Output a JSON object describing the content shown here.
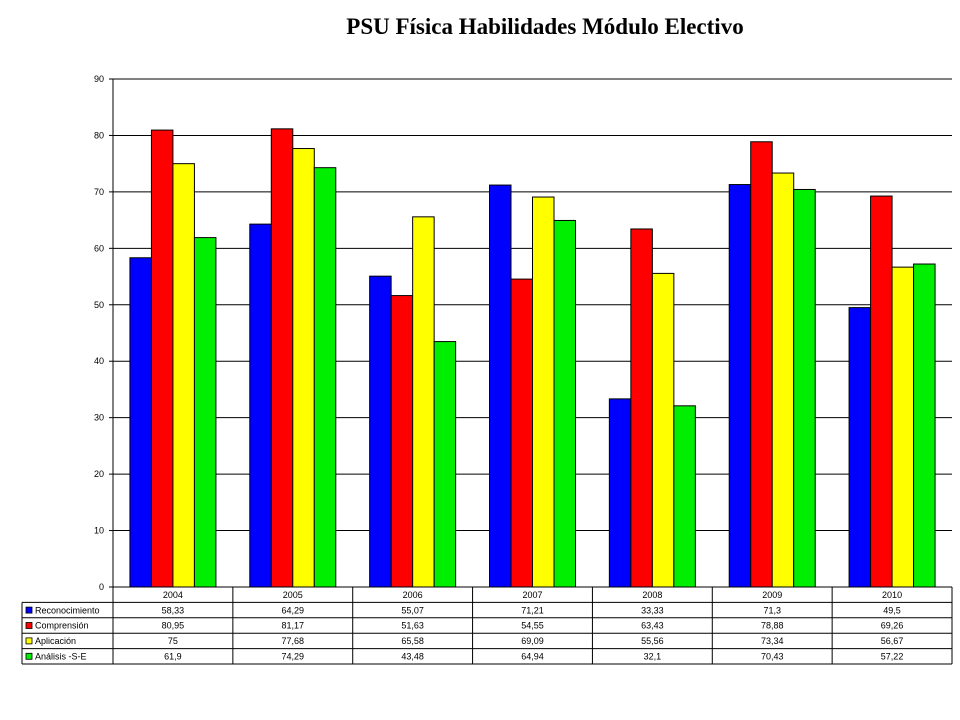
{
  "chart_data": {
    "type": "bar",
    "title": "PSU Física Habilidades Módulo Electivo",
    "categories": [
      "2004",
      "2005",
      "2006",
      "2007",
      "2008",
      "2009",
      "2010"
    ],
    "ylim": [
      0,
      90
    ],
    "yticks": [
      0,
      10,
      20,
      30,
      40,
      50,
      60,
      70,
      80,
      90
    ],
    "grid": true,
    "legend": "data-table",
    "series": [
      {
        "name": "Reconocimiento",
        "color": "#0000FF",
        "values": [
          58.33,
          64.29,
          55.07,
          71.21,
          33.33,
          71.3,
          49.5
        ],
        "labels": [
          "58,33",
          "64,29",
          "55,07",
          "71,21",
          "33,33",
          "71,3",
          "49,5"
        ]
      },
      {
        "name": "Comprensión",
        "color": "#FF0000",
        "values": [
          80.95,
          81.17,
          51.63,
          54.55,
          63.43,
          78.88,
          69.26
        ],
        "labels": [
          "80,95",
          "81,17",
          "51,63",
          "54,55",
          "63,43",
          "78,88",
          "69,26"
        ]
      },
      {
        "name": "Aplicación",
        "color": "#FFFF00",
        "values": [
          75,
          77.68,
          65.58,
          69.09,
          55.56,
          73.34,
          56.67
        ],
        "labels": [
          "75",
          "77,68",
          "65,58",
          "69,09",
          "55,56",
          "73,34",
          "56,67"
        ]
      },
      {
        "name": "Análisis -S-E",
        "color": "#00EE00",
        "values": [
          61.9,
          74.29,
          43.48,
          64.94,
          32.1,
          70.43,
          57.22
        ],
        "labels": [
          "61,9",
          "74,29",
          "43,48",
          "64,94",
          "32,1",
          "70,43",
          "57,22"
        ]
      }
    ]
  }
}
